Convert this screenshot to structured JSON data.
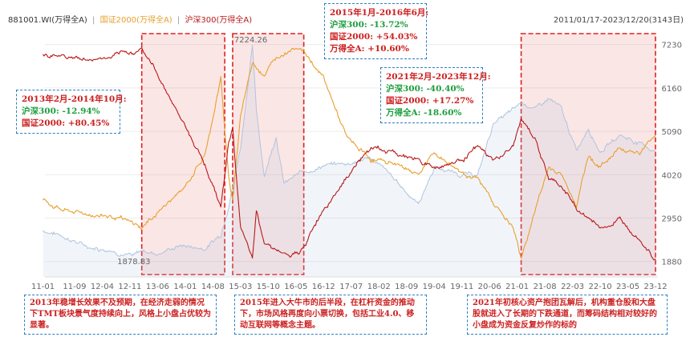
{
  "header": {
    "left": "881001.WI(万得全A)",
    "sep": "|",
    "series2": "国证2000(万得全A)",
    "series3": "沪深300(万得全A)",
    "range": "2011/01/17-2023/12/20(3143日)"
  },
  "annotations": {
    "period1": {
      "title": "2013年2月-2014年10月:",
      "l1": "沪深300: -12.94%",
      "l2": "国证2000: +80.45%"
    },
    "period2": {
      "title": "2015年1月-2016年6月:",
      "l1": "沪深300: -13.72%",
      "l2": "国证2000: +54.03%",
      "l3": "万得全A: +10.60%"
    },
    "period3": {
      "title": "2021年2月-2023年12月:",
      "l1": "沪深300: -40.40%",
      "l2": "国证2000: +17.27%",
      "l3": "万得全A: -18.60%"
    },
    "note1": "2013年稳增长效果不及预期，在经济走弱的情况下TMT板块景气度持续向上，风格上小盘占优较为显著。",
    "note2": "2015年进入大牛市的后半段，在杠杆资金的推动下，市场风格再度向小票切换，包括工业4.0、移动互联网等概念主题。",
    "note3": "2021年初核心资产抱团瓦解后，机构重仓股和大盘股就进入了长期的下跌通道，而筹码结构相对较好的小盘成为资金反复炒作的标的"
  },
  "chart_data": {
    "type": "line",
    "title": "",
    "x_range": [
      "2011-01-17",
      "2023-12-20"
    ],
    "x_ticks": [
      "11-01",
      "11-09",
      "12-04",
      "12-11",
      "13-06",
      "14-01",
      "14-08",
      "15-03",
      "15-10",
      "16-05",
      "16-12",
      "17-07",
      "18-02",
      "18-09",
      "19-04",
      "19-11",
      "20-06",
      "21-01",
      "21-08",
      "22-03",
      "22-10",
      "23-05",
      "23-12"
    ],
    "y_ticks": [
      1880,
      2950,
      4020,
      5090,
      6160,
      7230
    ],
    "ylim": [
      1500,
      7400
    ],
    "max_label": "7224.26",
    "min_label": "1878.83",
    "highlight_periods": [
      {
        "start": "2013-02",
        "end": "2014-10"
      },
      {
        "start": "2015-01",
        "end": "2016-06"
      },
      {
        "start": "2021-02",
        "end": "2023-12"
      }
    ],
    "series": [
      {
        "name": "881001.WI(万得全A)",
        "color": "#b0c4dc",
        "points": [
          [
            "2011-01",
            2650
          ],
          [
            "2011-06",
            2520
          ],
          [
            "2011-12",
            2250
          ],
          [
            "2012-06",
            2180
          ],
          [
            "2012-12",
            2000
          ],
          [
            "2013-02",
            2150
          ],
          [
            "2013-06",
            2080
          ],
          [
            "2013-12",
            2280
          ],
          [
            "2014-06",
            2200
          ],
          [
            "2014-10",
            2550
          ],
          [
            "2014-12",
            3300
          ],
          [
            "2015-03",
            4700
          ],
          [
            "2015-06",
            7200
          ],
          [
            "2015-07",
            5600
          ],
          [
            "2015-09",
            4000
          ],
          [
            "2015-12",
            5000
          ],
          [
            "2016-02",
            3800
          ],
          [
            "2016-06",
            4050
          ],
          [
            "2016-12",
            4250
          ],
          [
            "2017-06",
            4300
          ],
          [
            "2017-12",
            4450
          ],
          [
            "2018-06",
            3900
          ],
          [
            "2018-12",
            3300
          ],
          [
            "2019-04",
            4200
          ],
          [
            "2019-10",
            4050
          ],
          [
            "2020-03",
            4000
          ],
          [
            "2020-07",
            5300
          ],
          [
            "2020-12",
            5600
          ],
          [
            "2021-02",
            5800
          ],
          [
            "2021-06",
            5650
          ],
          [
            "2021-09",
            5900
          ],
          [
            "2021-12",
            5650
          ],
          [
            "2022-04",
            4600
          ],
          [
            "2022-07",
            5200
          ],
          [
            "2022-10",
            4600
          ],
          [
            "2023-03",
            5000
          ],
          [
            "2023-08",
            4800
          ],
          [
            "2023-12",
            4600
          ]
        ]
      },
      {
        "name": "国证2000(万得全A)",
        "color": "#e7a02d",
        "points": [
          [
            "2011-01",
            3400
          ],
          [
            "2011-06",
            3150
          ],
          [
            "2011-12",
            3050
          ],
          [
            "2012-06",
            3000
          ],
          [
            "2012-12",
            2800
          ],
          [
            "2013-02",
            2700
          ],
          [
            "2013-06",
            3100
          ],
          [
            "2013-12",
            3600
          ],
          [
            "2014-06",
            4500
          ],
          [
            "2014-10",
            6400
          ],
          [
            "2014-12",
            3900
          ],
          [
            "2015-01",
            3400
          ],
          [
            "2015-03",
            5500
          ],
          [
            "2015-06",
            6800
          ],
          [
            "2015-09",
            6500
          ],
          [
            "2015-12",
            6900
          ],
          [
            "2016-03",
            7100
          ],
          [
            "2016-06",
            7200
          ],
          [
            "2016-12",
            6400
          ],
          [
            "2017-06",
            4900
          ],
          [
            "2017-12",
            4400
          ],
          [
            "2018-06",
            4300
          ],
          [
            "2018-12",
            4050
          ],
          [
            "2019-04",
            4550
          ],
          [
            "2019-10",
            4150
          ],
          [
            "2020-03",
            3900
          ],
          [
            "2020-07",
            3350
          ],
          [
            "2020-12",
            2700
          ],
          [
            "2021-02",
            1950
          ],
          [
            "2021-06",
            3300
          ],
          [
            "2021-09",
            4200
          ],
          [
            "2021-12",
            4050
          ],
          [
            "2022-04",
            3300
          ],
          [
            "2022-07",
            4500
          ],
          [
            "2022-10",
            4200
          ],
          [
            "2023-03",
            4700
          ],
          [
            "2023-08",
            4550
          ],
          [
            "2023-12",
            5000
          ]
        ]
      },
      {
        "name": "沪深300(万得全A)",
        "color": "#b81818",
        "points": [
          [
            "2011-01",
            7000
          ],
          [
            "2011-06",
            6950
          ],
          [
            "2011-12",
            6850
          ],
          [
            "2012-06",
            6900
          ],
          [
            "2012-12",
            7050
          ],
          [
            "2013-02",
            7150
          ],
          [
            "2013-06",
            6500
          ],
          [
            "2013-12",
            5400
          ],
          [
            "2014-06",
            4300
          ],
          [
            "2014-10",
            3200
          ],
          [
            "2014-12",
            4800
          ],
          [
            "2015-01",
            5200
          ],
          [
            "2015-03",
            2700
          ],
          [
            "2015-06",
            1900
          ],
          [
            "2015-07",
            3100
          ],
          [
            "2015-09",
            2400
          ],
          [
            "2015-12",
            2200
          ],
          [
            "2016-03",
            2000
          ],
          [
            "2016-06",
            2050
          ],
          [
            "2016-12",
            3200
          ],
          [
            "2017-06",
            4000
          ],
          [
            "2017-12",
            4700
          ],
          [
            "2018-06",
            4550
          ],
          [
            "2018-12",
            4400
          ],
          [
            "2019-04",
            4200
          ],
          [
            "2019-10",
            4350
          ],
          [
            "2020-03",
            4700
          ],
          [
            "2020-07",
            4350
          ],
          [
            "2020-12",
            4700
          ],
          [
            "2021-02",
            5400
          ],
          [
            "2021-06",
            4800
          ],
          [
            "2021-09",
            3900
          ],
          [
            "2021-12",
            3750
          ],
          [
            "2022-04",
            3200
          ],
          [
            "2022-07",
            2950
          ],
          [
            "2022-10",
            2700
          ],
          [
            "2023-03",
            2900
          ],
          [
            "2023-08",
            2500
          ],
          [
            "2023-12",
            1950
          ]
        ]
      }
    ]
  }
}
